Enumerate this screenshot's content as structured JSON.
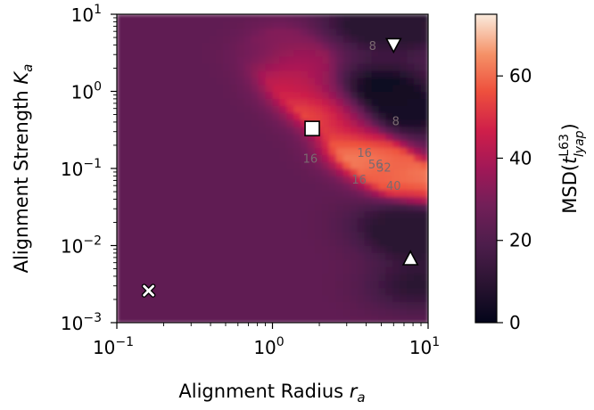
{
  "chart_data": {
    "type": "heatmap",
    "xlabel": "Alignment Radius",
    "xlabel_symbol": "r",
    "xlabel_sub": "a",
    "ylabel": "Alignment Strength",
    "ylabel_symbol": "K",
    "ylabel_sub": "a",
    "x_scale": "log",
    "y_scale": "log",
    "xlim": [
      0.1,
      10
    ],
    "ylim": [
      0.001,
      10
    ],
    "x_ticks": [
      {
        "value": 0.1,
        "base": "10",
        "exp": "−1"
      },
      {
        "value": 1,
        "base": "10",
        "exp": "0"
      },
      {
        "value": 10,
        "base": "10",
        "exp": "1"
      }
    ],
    "y_ticks": [
      {
        "value": 0.001,
        "base": "10",
        "exp": "−3"
      },
      {
        "value": 0.01,
        "base": "10",
        "exp": "−2"
      },
      {
        "value": 0.1,
        "base": "10",
        "exp": "−1"
      },
      {
        "value": 1,
        "base": "10",
        "exp": "0"
      },
      {
        "value": 10,
        "base": "10",
        "exp": "1"
      }
    ],
    "colorbar": {
      "label_prefix": "MSD(",
      "label_t": "t",
      "label_sup": "L63",
      "label_sub": "lyap",
      "label_suffix": ")",
      "range": [
        0,
        75
      ],
      "ticks": [
        0,
        20,
        40,
        60
      ],
      "colormap": "rocket"
    },
    "contour_labels": [
      {
        "text": "16",
        "x": 3.9,
        "y": 0.155
      },
      {
        "text": "56",
        "x": 4.6,
        "y": 0.11
      },
      {
        "text": "32",
        "x": 5.2,
        "y": 0.1
      },
      {
        "text": "40",
        "x": 6.0,
        "y": 0.058
      },
      {
        "text": "16",
        "x": 3.6,
        "y": 0.07
      },
      {
        "text": "16",
        "x": 1.75,
        "y": 0.13
      },
      {
        "text": "8",
        "x": 6.2,
        "y": 0.4
      },
      {
        "text": "8",
        "x": 4.4,
        "y": 3.8
      }
    ],
    "markers": [
      {
        "shape": "x",
        "x": 0.16,
        "y": 0.0026
      },
      {
        "shape": "square",
        "x": 1.8,
        "y": 0.33
      },
      {
        "shape": "triangle-down",
        "x": 6.0,
        "y": 4.0
      },
      {
        "shape": "triangle-up",
        "x": 7.7,
        "y": 0.0068
      }
    ],
    "field": {
      "background": 24,
      "ridge_points": [
        {
          "x": 1.55,
          "y": 3.0,
          "v": 38
        },
        {
          "x": 1.35,
          "y": 2.0,
          "v": 42
        },
        {
          "x": 1.5,
          "y": 1.3,
          "v": 46
        },
        {
          "x": 1.8,
          "y": 0.9,
          "v": 48
        },
        {
          "x": 2.3,
          "y": 0.6,
          "v": 62
        },
        {
          "x": 2.9,
          "y": 0.4,
          "v": 48
        },
        {
          "x": 3.5,
          "y": 0.22,
          "v": 56
        },
        {
          "x": 4.3,
          "y": 0.15,
          "v": 70
        },
        {
          "x": 5.5,
          "y": 0.1,
          "v": 52
        },
        {
          "x": 7.5,
          "y": 0.07,
          "v": 68
        },
        {
          "x": 9.5,
          "y": 0.055,
          "v": 60
        },
        {
          "x": 1.2,
          "y": 5.0,
          "v": 32
        },
        {
          "x": 0.75,
          "y": 3.0,
          "v": 26
        }
      ],
      "dark_points": [
        {
          "x": 5.0,
          "y": 1.2,
          "v": 2
        },
        {
          "x": 8.0,
          "y": 0.5,
          "v": 4
        },
        {
          "x": 4.2,
          "y": 8.0,
          "v": 8
        },
        {
          "x": 7.8,
          "y": 6.5,
          "v": 10
        },
        {
          "x": 9.0,
          "y": 0.012,
          "v": 8
        },
        {
          "x": 6.5,
          "y": 0.02,
          "v": 10
        },
        {
          "x": 8.5,
          "y": 0.003,
          "v": 9
        }
      ]
    }
  }
}
